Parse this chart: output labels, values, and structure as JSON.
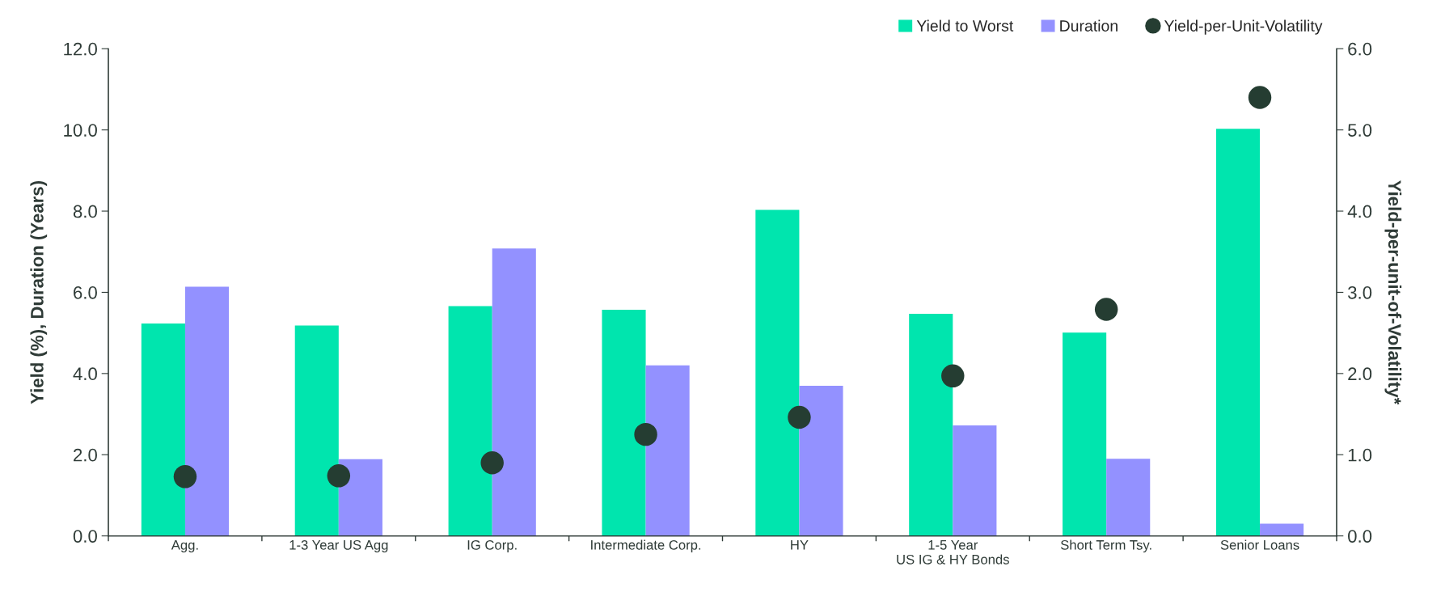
{
  "chart_data": {
    "type": "bar",
    "categories": [
      "Agg.",
      "1-3 Year US Agg",
      "IG Corp.",
      "Intermediate Corp.",
      "HY",
      "1-5 Year\nUS IG & HY Bonds",
      "Short Term Tsy.",
      "Senior Loans"
    ],
    "series": [
      {
        "name": "Yield to Worst",
        "color": "#00e5ae",
        "values": [
          5.23,
          5.18,
          5.66,
          5.57,
          8.03,
          5.47,
          5.01,
          10.03
        ]
      },
      {
        "name": "Duration",
        "color": "#9391ff",
        "values": [
          6.14,
          1.89,
          7.08,
          4.2,
          3.7,
          2.72,
          1.9,
          0.3
        ]
      },
      {
        "name": "Yield-per-Unit-Volatility",
        "type": "scatter",
        "axis": "y2",
        "color": "#253d32",
        "x": [
          "Agg.",
          "1-3 Year US Agg",
          "IG Corp.",
          "Intermediate Corp.",
          "HY",
          "1-5 Year\nUS IG & HY Bonds",
          "Short Term Tsy.",
          "Senior Loans"
        ],
        "values": [
          0.73,
          0.74,
          0.9,
          1.25,
          1.46,
          1.97,
          2.79,
          5.4
        ]
      }
    ],
    "ylabel": "Yield (%), Duration (Years)",
    "y2label": "Yield-per-unit-of-Volatility*",
    "ylim": [
      0,
      12
    ],
    "yticks": [
      {
        "value": 0,
        "label": "0.0"
      },
      {
        "value": 2,
        "label": "2.0"
      },
      {
        "value": 4,
        "label": "4.0"
      },
      {
        "value": 6,
        "label": "6.0"
      },
      {
        "value": 8,
        "label": "8.0"
      },
      {
        "value": 10,
        "label": "10.0"
      },
      {
        "value": 12,
        "label": "12.0"
      }
    ],
    "y2lim": [
      0,
      6
    ],
    "y2ticks": [
      {
        "value": 0,
        "label": "0.0"
      },
      {
        "value": 1,
        "label": "1.0"
      },
      {
        "value": 2,
        "label": "2.0"
      },
      {
        "value": 3,
        "label": "3.0"
      },
      {
        "value": 4,
        "label": "4.0"
      },
      {
        "value": 5,
        "label": "5.0"
      },
      {
        "value": 6,
        "label": "6.0"
      }
    ],
    "legend": "top right",
    "grid": false,
    "marker": "circle"
  }
}
